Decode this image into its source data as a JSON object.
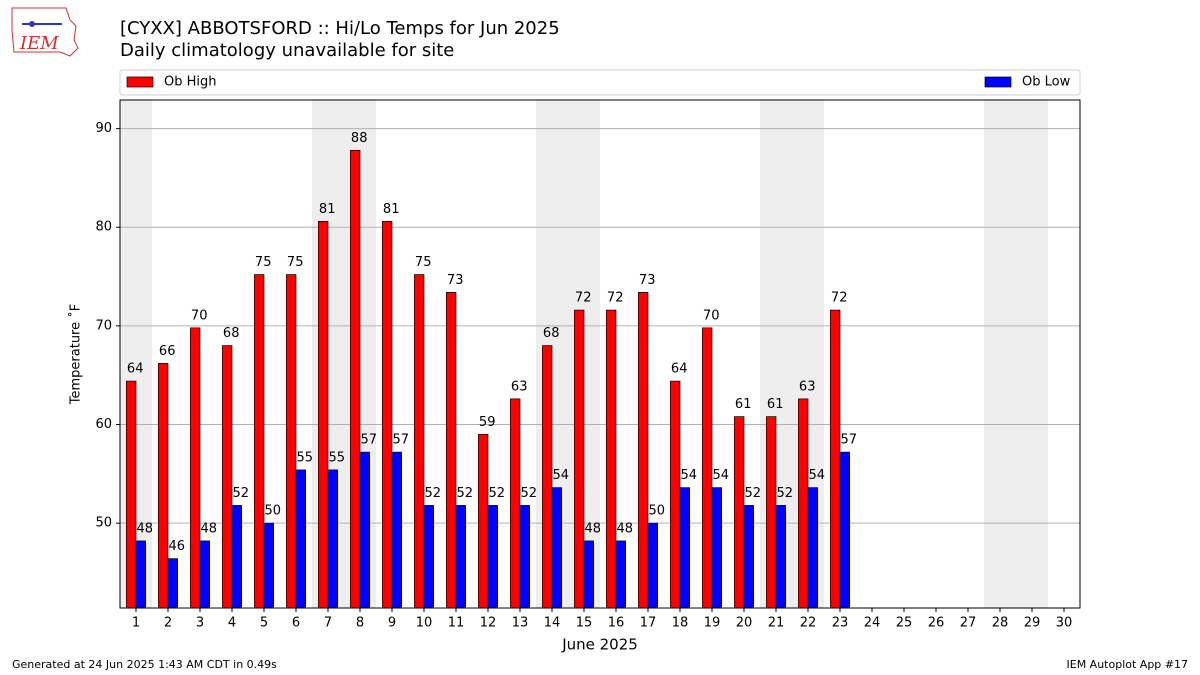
{
  "chart_data": {
    "type": "bar",
    "logo_text": "IEM",
    "title": "[CYXX] ABBOTSFORD :: Hi/Lo Temps for Jun 2025",
    "subtitle": "Daily climatology unavailable for site",
    "x_label": "June 2025",
    "y_label": "Temperature ˚F",
    "footer_left": "Generated at 24 Jun 2025 1:43 AM CDT in 0.49s",
    "footer_right": "IEM Autoplot App #17",
    "x": [
      1,
      2,
      3,
      4,
      5,
      6,
      7,
      8,
      9,
      10,
      11,
      12,
      13,
      14,
      15,
      16,
      17,
      18,
      19,
      20,
      21,
      22,
      23,
      24,
      25,
      26,
      27,
      28,
      29,
      30
    ],
    "xlim": [
      0.5,
      30.5
    ],
    "xticks": [
      1,
      2,
      3,
      4,
      5,
      6,
      7,
      8,
      9,
      10,
      11,
      12,
      13,
      14,
      15,
      16,
      17,
      18,
      19,
      20,
      21,
      22,
      23,
      24,
      25,
      26,
      27,
      28,
      29,
      30
    ],
    "ylim": [
      41.4,
      92.9
    ],
    "yticks": [
      50,
      60,
      70,
      80,
      90
    ],
    "grid": true,
    "weekend_days": [
      1,
      7,
      8,
      14,
      15,
      21,
      22,
      28,
      29
    ],
    "weekend_color": "#eeeeee",
    "series": [
      {
        "name": "Ob High",
        "color": "#ff0000",
        "values": [
          64.4,
          66.2,
          69.8,
          68,
          75.2,
          75.2,
          80.6,
          87.8,
          80.6,
          75.2,
          73.4,
          59,
          62.6,
          68,
          71.6,
          71.6,
          73.4,
          64.4,
          69.8,
          60.8,
          60.8,
          62.6,
          71.6,
          null,
          null,
          null,
          null,
          null,
          null,
          null
        ],
        "value_labels": [
          "64",
          "66",
          "70",
          "68",
          "75",
          "75",
          "81",
          "88",
          "81",
          "75",
          "73",
          "59",
          "63",
          "68",
          "72",
          "72",
          "73",
          "64",
          "70",
          "61",
          "61",
          "63",
          "72",
          null,
          null,
          null,
          null,
          null,
          null,
          null
        ]
      },
      {
        "name": "Ob Low",
        "color": "#0000ff",
        "values": [
          48.2,
          46.4,
          48.2,
          51.8,
          50,
          55.4,
          55.4,
          57.2,
          57.2,
          51.8,
          51.8,
          51.8,
          51.8,
          53.6,
          48.2,
          48.2,
          50,
          53.6,
          53.6,
          51.8,
          51.8,
          53.6,
          57.2,
          null,
          null,
          null,
          null,
          null,
          null,
          null
        ],
        "value_labels": [
          "48",
          "46",
          "48",
          "52",
          "50",
          "55",
          "55",
          "57",
          "57",
          "52",
          "52",
          "52",
          "52",
          "54",
          "48",
          "48",
          "50",
          "54",
          "54",
          "52",
          "52",
          "54",
          "57",
          null,
          null,
          null,
          null,
          null,
          null,
          null
        ]
      }
    ]
  }
}
